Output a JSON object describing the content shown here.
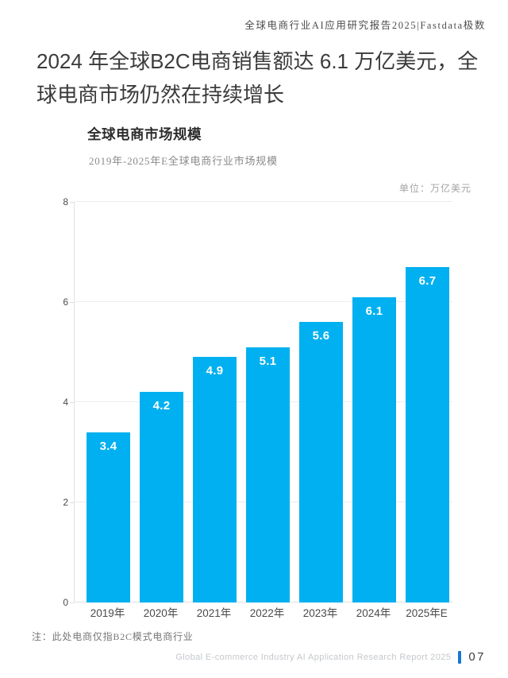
{
  "header": {
    "report_title": "全球电商行业AI应用研究报告2025|Fastdata极数"
  },
  "page_title": "2024 年全球B2C电商销售额达 6.1 万亿美元，全球电商市场仍然在持续增长",
  "chart": {
    "title": "全球电商市场规模",
    "subtitle": "2019年-2025年E全球电商行业市场规模",
    "unit_label": "单位：万亿美元"
  },
  "chart_data": {
    "type": "bar",
    "title": "全球电商市场规模",
    "subtitle": "2019年-2025年E全球电商行业市场规模",
    "unit": "万亿美元",
    "categories": [
      "2019年",
      "2020年",
      "2021年",
      "2022年",
      "2023年",
      "2024年",
      "2025年E"
    ],
    "values": [
      3.4,
      4.2,
      4.9,
      5.1,
      5.6,
      6.1,
      6.7
    ],
    "ylim": [
      0,
      8
    ],
    "yticks": [
      0,
      2,
      4,
      6,
      8
    ],
    "grid": true,
    "legend": "none",
    "value_label_position": "inside-top",
    "bar_color": "#00B0F0",
    "value_label_color": "#FFFFFF"
  },
  "note": "注：此处电商仅指B2C模式电商行业",
  "footer": {
    "text": "Global E-commerce Industry AI Application Research Report 2025",
    "page_number": "07",
    "accent_color": "#1678D3"
  }
}
